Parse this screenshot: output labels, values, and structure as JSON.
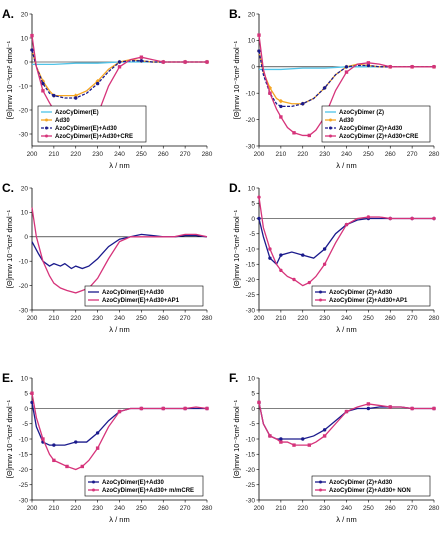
{
  "colors": {
    "cyan": "#4fc3e8",
    "orange": "#f5a623",
    "navy": "#1a1a8c",
    "magenta": "#d6337a"
  },
  "chart_data": [
    {
      "panel": "A.",
      "type": "line",
      "xlabel": "λ / nm",
      "ylabel": "[Θ]mrw 10⁻³cm² dmol⁻¹",
      "xlim": [
        200,
        280
      ],
      "ylim": [
        -35,
        20
      ],
      "xticks": [
        "200",
        "210",
        "220",
        "230",
        "240",
        "250",
        "260",
        "270",
        "280"
      ],
      "yticks": [
        "20",
        "10",
        "0",
        "-10",
        "-20",
        "-30"
      ],
      "legend_position": "bottom-left",
      "series": [
        {
          "name": "AzoCyDimer(E)",
          "color": "cyan",
          "marker": "none",
          "dash": false,
          "x": [
            200,
            210,
            220,
            230,
            240,
            250,
            260,
            270,
            280
          ],
          "y": [
            -1,
            -1,
            -0.5,
            -0.5,
            0,
            0,
            0,
            0,
            0
          ]
        },
        {
          "name": "Ad30",
          "color": "orange",
          "marker": "diamond",
          "dash": false,
          "x": [
            200,
            202,
            205,
            208,
            210,
            215,
            220,
            225,
            230,
            235,
            240,
            245,
            250,
            255,
            260,
            265,
            270,
            275,
            280
          ],
          "y": [
            5,
            -2,
            -8,
            -12,
            -14,
            -14,
            -14,
            -12,
            -8,
            -3,
            0,
            1,
            0.5,
            0,
            0,
            0,
            0,
            0,
            0
          ]
        },
        {
          "name": "AzoCyDimer(E)+Ad30",
          "color": "navy",
          "marker": "circle",
          "dash": true,
          "x": [
            200,
            202,
            205,
            208,
            210,
            215,
            220,
            225,
            230,
            235,
            240,
            245,
            250,
            255,
            260,
            265,
            270,
            275,
            280
          ],
          "y": [
            5,
            -2,
            -9,
            -13,
            -14,
            -15,
            -15,
            -13,
            -9,
            -4,
            0,
            0.5,
            0.5,
            0,
            0,
            0,
            0,
            0,
            0
          ]
        },
        {
          "name": "AzoCyDimer(E)+Ad30+CRE",
          "color": "magenta",
          "marker": "square",
          "dash": false,
          "x": [
            200,
            202,
            205,
            208,
            210,
            213,
            216,
            220,
            223,
            226,
            230,
            235,
            240,
            245,
            250,
            255,
            260,
            265,
            270,
            275,
            280
          ],
          "y": [
            11,
            -2,
            -12,
            -17,
            -20,
            -25,
            -29,
            -31,
            -31,
            -28,
            -22,
            -10,
            -2,
            1,
            2,
            1,
            0,
            0,
            0,
            0,
            0
          ]
        }
      ]
    },
    {
      "panel": "B.",
      "type": "line",
      "xlabel": "λ / nm",
      "ylabel": "[Θ]mrw 10⁻³cm² dmol⁻¹",
      "xlim": [
        200,
        280
      ],
      "ylim": [
        -30,
        20
      ],
      "xticks": [
        "200",
        "210",
        "220",
        "230",
        "240",
        "250",
        "260",
        "270",
        "280"
      ],
      "yticks": [
        "20",
        "10",
        "0",
        "-10",
        "-20",
        "-30"
      ],
      "legend_position": "bottom-right",
      "series": [
        {
          "name": "AzoCyDimer (Z)",
          "color": "cyan",
          "marker": "none",
          "dash": false,
          "x": [
            200,
            210,
            220,
            230,
            240,
            250,
            260,
            270,
            280
          ],
          "y": [
            -1,
            -1,
            -0.5,
            -0.5,
            0,
            0,
            0,
            0,
            0
          ]
        },
        {
          "name": "Ad30",
          "color": "orange",
          "marker": "diamond",
          "dash": false,
          "x": [
            200,
            202,
            205,
            208,
            210,
            215,
            220,
            225,
            230,
            235,
            240,
            245,
            250,
            255,
            260,
            265,
            270,
            275,
            280
          ],
          "y": [
            6,
            -2,
            -8,
            -12,
            -13,
            -14,
            -14,
            -12,
            -8,
            -3,
            0,
            1,
            0.5,
            0,
            0,
            0,
            0,
            0,
            0
          ]
        },
        {
          "name": "AzoCyDimer (Z)+Ad30",
          "color": "navy",
          "marker": "circle",
          "dash": true,
          "x": [
            200,
            202,
            205,
            208,
            210,
            215,
            220,
            225,
            230,
            235,
            240,
            245,
            250,
            255,
            260,
            265,
            270,
            275,
            280
          ],
          "y": [
            6,
            -3,
            -10,
            -14,
            -15,
            -15,
            -14,
            -12,
            -8,
            -3,
            0,
            0.5,
            0.5,
            0,
            0,
            0,
            0,
            0,
            0
          ]
        },
        {
          "name": "AzoCyDimer (Z)+Ad30+CRE",
          "color": "magenta",
          "marker": "square",
          "dash": false,
          "x": [
            200,
            202,
            205,
            208,
            210,
            213,
            216,
            220,
            223,
            226,
            230,
            235,
            240,
            245,
            250,
            255,
            260,
            265,
            270,
            275,
            280
          ],
          "y": [
            12,
            -1,
            -10,
            -16,
            -19,
            -23,
            -25,
            -26,
            -26,
            -24,
            -19,
            -9,
            -2,
            1,
            1.5,
            1,
            0,
            0,
            0,
            0,
            0
          ]
        }
      ]
    },
    {
      "panel": "C.",
      "type": "line",
      "xlabel": "λ / nm",
      "ylabel": "[Θ]mrw 10⁻³cm² dmol⁻¹",
      "xlim": [
        200,
        280
      ],
      "ylim": [
        -30,
        20
      ],
      "xticks": [
        "200",
        "210",
        "220",
        "230",
        "240",
        "250",
        "260",
        "270",
        "280"
      ],
      "yticks": [
        "20",
        "10",
        "0",
        "-10",
        "-20",
        "-30"
      ],
      "legend_position": "bottom-right",
      "series": [
        {
          "name": "AzoCyDimer(E)+Ad30",
          "color": "navy",
          "marker": "none",
          "dash": false,
          "x": [
            200,
            203,
            205,
            208,
            210,
            213,
            215,
            218,
            220,
            223,
            226,
            230,
            235,
            240,
            245,
            250,
            255,
            260,
            265,
            270,
            275,
            280
          ],
          "y": [
            -2,
            -7,
            -10,
            -12,
            -11,
            -12,
            -11,
            -13,
            -12,
            -13,
            -12,
            -9,
            -4,
            -1,
            0,
            1,
            0.5,
            0,
            0,
            0.5,
            0.5,
            0
          ]
        },
        {
          "name": "AzoCyDimer(E)+Ad30+AP1",
          "color": "magenta",
          "marker": "none",
          "dash": false,
          "x": [
            200,
            202,
            205,
            208,
            210,
            213,
            216,
            220,
            223,
            226,
            230,
            235,
            240,
            245,
            250,
            255,
            260,
            265,
            270,
            275,
            280
          ],
          "y": [
            12,
            0,
            -10,
            -16,
            -19,
            -21,
            -22,
            -23,
            -22,
            -21,
            -17,
            -9,
            -2,
            0,
            0,
            0,
            0,
            0,
            1,
            1,
            0
          ]
        }
      ]
    },
    {
      "panel": "D.",
      "type": "line",
      "xlabel": "λ / nm",
      "ylabel": "[Θ]mrw 10⁻³cm² dmol⁻¹",
      "xlim": [
        200,
        280
      ],
      "ylim": [
        -30,
        10
      ],
      "xticks": [
        "200",
        "210",
        "220",
        "230",
        "240",
        "250",
        "260",
        "270",
        "280"
      ],
      "yticks": [
        "10",
        "5",
        "0",
        "-5",
        "-10",
        "-15",
        "-20",
        "-25",
        "-30"
      ],
      "legend_position": "bottom-right",
      "series": [
        {
          "name": "AzoCyDimer (Z)+Ad30",
          "color": "navy",
          "marker": "circle",
          "dash": false,
          "x": [
            200,
            202,
            205,
            208,
            210,
            215,
            220,
            225,
            230,
            235,
            240,
            245,
            250,
            255,
            260,
            265,
            270,
            275,
            280
          ],
          "y": [
            0,
            -6,
            -13,
            -15,
            -12,
            -11,
            -12,
            -13,
            -10,
            -5,
            -2,
            -0.5,
            0,
            0,
            0,
            0,
            0,
            0,
            0
          ]
        },
        {
          "name": "AzoCyDimer (Z)+Ad30+AP1",
          "color": "magenta",
          "marker": "circle",
          "dash": false,
          "x": [
            200,
            202,
            205,
            208,
            210,
            213,
            216,
            220,
            223,
            226,
            230,
            235,
            240,
            245,
            250,
            255,
            260,
            265,
            270,
            275,
            280
          ],
          "y": [
            7,
            -3,
            -10,
            -15,
            -17,
            -19,
            -20,
            -22,
            -21,
            -19,
            -15,
            -8,
            -2,
            0,
            0.5,
            0.5,
            0,
            0,
            0,
            0,
            0
          ]
        }
      ]
    },
    {
      "panel": "E.",
      "type": "line",
      "xlabel": "λ / nm",
      "ylabel": "[Θ]mrw 10⁻³cm² dmol⁻¹",
      "xlim": [
        200,
        280
      ],
      "ylim": [
        -30,
        10
      ],
      "xticks": [
        "200",
        "210",
        "220",
        "230",
        "240",
        "250",
        "260",
        "270",
        "280"
      ],
      "yticks": [
        "10",
        "5",
        "0",
        "-5",
        "-10",
        "-15",
        "-20",
        "-25",
        "-30"
      ],
      "legend_position": "bottom-right",
      "series": [
        {
          "name": "AzoCyDimer(E)+Ad30",
          "color": "navy",
          "marker": "circle",
          "dash": false,
          "x": [
            200,
            202,
            205,
            208,
            210,
            215,
            220,
            225,
            230,
            235,
            240,
            245,
            250,
            255,
            260,
            265,
            270,
            275,
            280
          ],
          "y": [
            2,
            -6,
            -11,
            -12,
            -12,
            -12,
            -11,
            -11,
            -8,
            -4,
            -1,
            0,
            0,
            0,
            0,
            0,
            0,
            0,
            0
          ]
        },
        {
          "name": "AzoCyDimer(E)+Ad30+ m/mCRE",
          "color": "magenta",
          "marker": "square",
          "dash": false,
          "x": [
            200,
            202,
            205,
            208,
            210,
            213,
            216,
            220,
            223,
            226,
            230,
            235,
            240,
            245,
            250,
            255,
            260,
            265,
            270,
            275,
            280
          ],
          "y": [
            5,
            -3,
            -10,
            -15,
            -17,
            -18,
            -19,
            -20,
            -19,
            -17,
            -13,
            -6,
            -1,
            0,
            0,
            0,
            0,
            0,
            0,
            0.5,
            0
          ]
        }
      ]
    },
    {
      "panel": "F.",
      "type": "line",
      "xlabel": "λ / nm",
      "ylabel": "[Θ]mrw 10⁻³cm² dmol⁻¹",
      "xlim": [
        200,
        280
      ],
      "ylim": [
        -30,
        10
      ],
      "xticks": [
        "200",
        "210",
        "220",
        "230",
        "240",
        "250",
        "260",
        "270",
        "280"
      ],
      "yticks": [
        "10",
        "5",
        "0",
        "-5",
        "-10",
        "-15",
        "-20",
        "-25",
        "-30"
      ],
      "legend_position": "bottom-right",
      "series": [
        {
          "name": "AzoCyDimer (Z)+Ad30",
          "color": "navy",
          "marker": "circle",
          "dash": false,
          "x": [
            200,
            202,
            205,
            208,
            210,
            215,
            220,
            225,
            230,
            235,
            240,
            245,
            250,
            255,
            260,
            265,
            270,
            275,
            280
          ],
          "y": [
            2,
            -5,
            -9,
            -10,
            -10,
            -10,
            -10,
            -9,
            -7,
            -4,
            -1,
            0,
            0,
            0.5,
            0.5,
            0.5,
            0,
            0,
            0
          ]
        },
        {
          "name": "AzoCyDimer (Z)+Ad30+ NON",
          "color": "magenta",
          "marker": "square",
          "dash": false,
          "x": [
            200,
            202,
            205,
            208,
            210,
            213,
            216,
            220,
            223,
            226,
            230,
            235,
            240,
            245,
            250,
            255,
            260,
            265,
            270,
            275,
            280
          ],
          "y": [
            2,
            -5,
            -9,
            -10,
            -11,
            -11,
            -12,
            -12,
            -12,
            -11,
            -9,
            -5,
            -1,
            0.5,
            1.5,
            1,
            0.5,
            0.5,
            0,
            0,
            0
          ]
        }
      ]
    }
  ]
}
